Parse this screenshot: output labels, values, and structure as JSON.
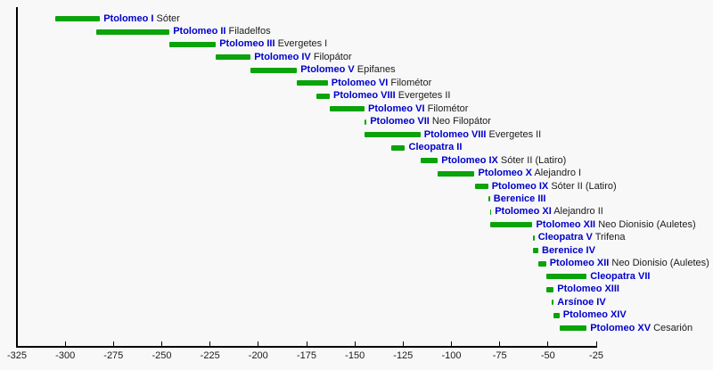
{
  "chart_data": {
    "type": "bar",
    "variant": "horizontal-timeline",
    "title": "",
    "xlabel": "",
    "ylabel": "",
    "grid": false,
    "legend": false,
    "colors": {
      "background": "#f8f8f8",
      "bar": "#0aa30a",
      "ruler_name": "#0000cc",
      "epithet": "#1a1a1a",
      "axis": "#000000"
    },
    "x_axis": {
      "min": -325,
      "max": -25,
      "tick_interval": 25,
      "tick_values": [
        -325,
        -300,
        -275,
        -250,
        -225,
        -200,
        -175,
        -150,
        -125,
        -100,
        -75,
        -50,
        -25
      ],
      "tick_labels": [
        "-325",
        "-300",
        "-275",
        "-250",
        "-225",
        "-200",
        "-175",
        "-150",
        "-125",
        "-100",
        "-75",
        "-50",
        "-25"
      ]
    },
    "rows": [
      {
        "name": "Ptolomeo I",
        "epithet": "Sóter",
        "start": -305,
        "end": -282
      },
      {
        "name": "Ptolomeo II",
        "epithet": "Filadelfos",
        "start": -284,
        "end": -246
      },
      {
        "name": "Ptolomeo III",
        "epithet": "Evergetes I",
        "start": -246,
        "end": -222
      },
      {
        "name": "Ptolomeo IV",
        "epithet": "Filopátor",
        "start": -222,
        "end": -204
      },
      {
        "name": "Ptolomeo V",
        "epithet": "Epifanes",
        "start": -204,
        "end": -180
      },
      {
        "name": "Ptolomeo VI",
        "epithet": "Filométor",
        "start": -180,
        "end": -164
      },
      {
        "name": "Ptolomeo VIII",
        "epithet": "Evergetes II",
        "start": -170,
        "end": -163
      },
      {
        "name": "Ptolomeo VI",
        "epithet": "Filométor",
        "start": -163,
        "end": -145
      },
      {
        "name": "Ptolomeo VII",
        "epithet": "Neo Filopátor",
        "start": -145,
        "end": -144
      },
      {
        "name": "Ptolomeo VIII",
        "epithet": "Evergetes II",
        "start": -145,
        "end": -116
      },
      {
        "name": "Cleopatra II",
        "epithet": "",
        "start": -131,
        "end": -124
      },
      {
        "name": "Ptolomeo IX",
        "epithet": "Sóter II (Latiro)",
        "start": -116,
        "end": -107
      },
      {
        "name": "Ptolomeo X",
        "epithet": "Alejandro I",
        "start": -107,
        "end": -88
      },
      {
        "name": "Ptolomeo IX",
        "epithet": "Sóter II (Latiro)",
        "start": -88,
        "end": -81
      },
      {
        "name": "Berenice III",
        "epithet": "",
        "start": -81,
        "end": -80
      },
      {
        "name": "Ptolomeo XI",
        "epithet": "Alejandro II",
        "start": -80,
        "end": -80
      },
      {
        "name": "Ptolomeo XII",
        "epithet": "Neo Dionisio (Auletes)",
        "start": -80,
        "end": -58
      },
      {
        "name": "Cleopatra V",
        "epithet": "Trifena",
        "start": -58,
        "end": -57
      },
      {
        "name": "Berenice IV",
        "epithet": "",
        "start": -58,
        "end": -55
      },
      {
        "name": "Ptolomeo XII",
        "epithet": "Neo Dionisio (Auletes)",
        "start": -55,
        "end": -51
      },
      {
        "name": "Cleopatra VII",
        "epithet": "",
        "start": -51,
        "end": -30
      },
      {
        "name": "Ptolomeo XIII",
        "epithet": "",
        "start": -51,
        "end": -47
      },
      {
        "name": "Arsínoe IV",
        "epithet": "",
        "start": -48,
        "end": -47
      },
      {
        "name": "Ptolomeo XIV",
        "epithet": "",
        "start": -47,
        "end": -44
      },
      {
        "name": "Ptolomeo XV",
        "epithet": "Cesarión",
        "start": -44,
        "end": -30
      }
    ]
  }
}
